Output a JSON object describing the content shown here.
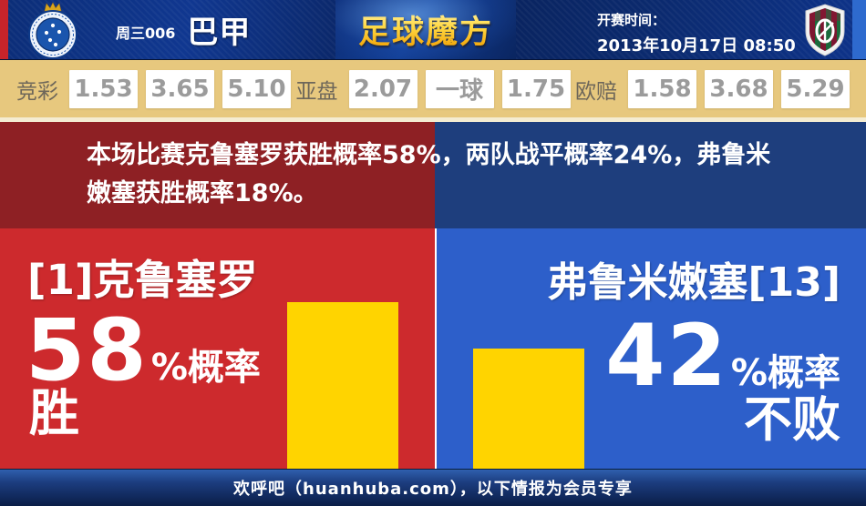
{
  "header": {
    "round_label": "周三006",
    "league_label": "巴甲",
    "brand_text": "足球魔方",
    "kickoff_label": "开赛时间：",
    "kickoff_time": "2013年10月17日 08:50"
  },
  "odds_bar": {
    "groups": [
      {
        "label": "竞彩",
        "values": [
          "1.53",
          "3.65",
          "5.10"
        ]
      },
      {
        "label": "亚盘",
        "values": [
          "2.07",
          "一球",
          "1.75"
        ]
      },
      {
        "label": "欧赔",
        "values": [
          "1.58",
          "3.68",
          "5.29"
        ]
      }
    ]
  },
  "banner": {
    "text": "本场比赛克鲁塞罗获胜概率58%，两队战平概率24%，弗鲁米嫩塞获胜概率18%。"
  },
  "prediction": {
    "home": {
      "team": "[1]克鲁塞罗",
      "percent": "58",
      "suffix": "%概率",
      "outcome": "胜"
    },
    "away": {
      "team": "弗鲁米嫩塞[13]",
      "percent": "42",
      "suffix": "%概率",
      "outcome": "不败"
    }
  },
  "footer": {
    "text": "欢呼吧（huanhuba.com），以下情报为会员专享"
  },
  "colors": {
    "home_red": "#cd2a2d",
    "away_blue": "#2d5fca",
    "banner_red": "#8e2024",
    "banner_blue": "#1e3e7d",
    "bar_yellow": "#ffd400",
    "odds_bg": "#e7c87e",
    "header_navy": "#0b2d77"
  },
  "icons": {
    "home_crest": "cruzeiro-crest",
    "away_crest": "fluminense-crest",
    "brand": "zuqiu-mofang-logo"
  }
}
